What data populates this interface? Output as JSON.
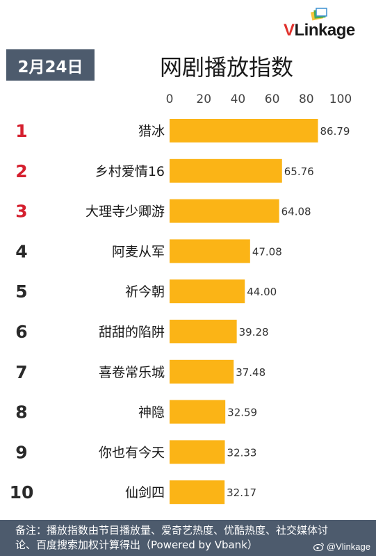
{
  "brand": {
    "logo_v": "V",
    "logo_rest": "Linkage"
  },
  "header": {
    "date": "2月24日",
    "title": "网剧播放指数"
  },
  "chart_data": {
    "type": "bar",
    "orientation": "horizontal",
    "title": "网剧播放指数",
    "xlim": [
      0,
      100
    ],
    "ticks": [
      0,
      20,
      40,
      60,
      80,
      100
    ],
    "ranks": [
      "1",
      "2",
      "3",
      "4",
      "5",
      "6",
      "7",
      "8",
      "9",
      "10"
    ],
    "categories": [
      "猎冰",
      "乡村爱情16",
      "大理寺少卿游",
      "阿麦从军",
      "祈今朝",
      "甜甜的陷阱",
      "喜卷常乐城",
      "神隐",
      "你也有今天",
      "仙剑四"
    ],
    "values": [
      86.79,
      65.76,
      64.08,
      47.08,
      44.0,
      39.28,
      37.48,
      32.59,
      32.33,
      32.17
    ],
    "value_labels": [
      "86.79",
      "65.76",
      "64.08",
      "47.08",
      "44.00",
      "39.28",
      "37.48",
      "32.59",
      "32.33",
      "32.17"
    ],
    "bar_color": "#fbb416",
    "top_rank_color": "#d5202f",
    "rank_color": "#2a2a2a",
    "grid": false
  },
  "footer": {
    "note": "备注：播放指数由节目播放量、爱奇艺热度、优酷热度、社交媒体讨论、百度搜索加权计算得出（Powered by Vbank）",
    "watermark": "@Vlinkage"
  }
}
